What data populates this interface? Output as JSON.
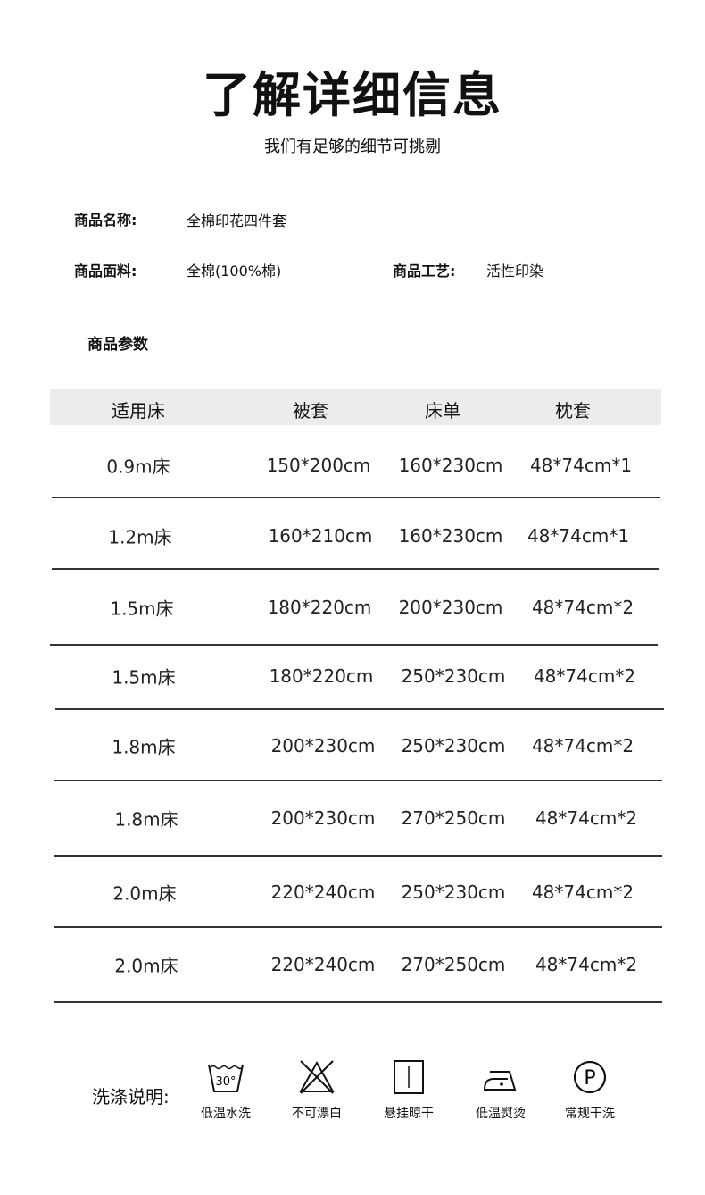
{
  "header": {
    "title": "了解详细信息",
    "subtitle": "我们有足够的细节可挑剔"
  },
  "info": {
    "name_label": "商品名称:",
    "name_value": "全棉印花四件套",
    "fabric_label": "商品面料:",
    "fabric_value": "全棉(100%棉)",
    "craft_label": "商品工艺:",
    "craft_value": "活性印染"
  },
  "params": {
    "title": "商品参数",
    "headers": [
      "适用床",
      "被套",
      "床单",
      "枕套"
    ],
    "rows": [
      [
        "0.9m床",
        "150*200cm",
        "160*230cm",
        "48*74cm*1"
      ],
      [
        "1.2m床",
        "160*210cm",
        "160*230cm",
        "48*74cm*1"
      ],
      [
        "1.5m床",
        "180*220cm",
        "200*230cm",
        "48*74cm*2"
      ],
      [
        "1.5m床",
        "180*220cm",
        "250*230cm",
        "48*74cm*2"
      ],
      [
        "1.8m床",
        "200*230cm",
        "250*230cm",
        "48*74cm*2"
      ],
      [
        "1.8m床",
        "200*230cm",
        "270*250cm",
        "48*74cm*2"
      ],
      [
        "2.0m床",
        "220*240cm",
        "250*230cm",
        "48*74cm*2"
      ],
      [
        "2.0m床",
        "220*240cm",
        "270*250cm",
        "48*74cm*2"
      ]
    ]
  },
  "wash": {
    "label": "洗涤说明:",
    "items": [
      {
        "icon": "wash-30-icon",
        "text": "低温水洗",
        "temp": "30°"
      },
      {
        "icon": "no-bleach-icon",
        "text": "不可漂白"
      },
      {
        "icon": "hang-dry-icon",
        "text": "悬挂晾干"
      },
      {
        "icon": "low-iron-icon",
        "text": "低温熨烫"
      },
      {
        "icon": "dry-clean-p-icon",
        "text": "常规干洗",
        "letter": "P"
      }
    ]
  }
}
